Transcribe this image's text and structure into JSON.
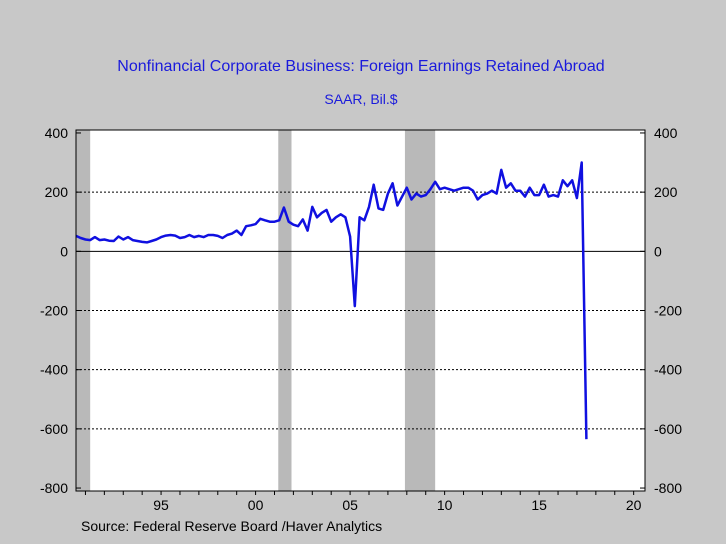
{
  "chart_data": {
    "type": "line",
    "title": "Nonfinancial Corporate Business: Foreign Earnings Retained Abroad",
    "subtitle": "SAAR, Bil.$",
    "source": "Source:  Federal Reserve Board /Haver Analytics",
    "y_ticks": [
      "400",
      "200",
      "0",
      "-200",
      "-400",
      "-600",
      "-800"
    ],
    "x_ticks": [
      "95",
      "00",
      "05",
      "10",
      "15",
      "20"
    ],
    "ylim": [
      -810,
      410
    ],
    "xlim": [
      1990.5,
      2020.6
    ],
    "colors": {
      "line": "#1010e0",
      "recession": "#b9b9b9",
      "plot_bg": "#ffffff",
      "frame_bg": "#c8c8c8",
      "title": "#1a1adc"
    },
    "recessions": [
      [
        1990.5,
        1991.25
      ],
      [
        2001.2,
        2001.9
      ],
      [
        2007.9,
        2009.5
      ]
    ],
    "series": [
      {
        "x": [
          1990.5,
          1990.75,
          1991.0,
          1991.25,
          1991.5,
          1991.75,
          1992.0,
          1992.25,
          1992.5,
          1992.75,
          1993.0,
          1993.25,
          1993.5,
          1993.75,
          1994.0,
          1994.25,
          1994.5,
          1994.75,
          1995.0,
          1995.25,
          1995.5,
          1995.75,
          1996.0,
          1996.25,
          1996.5,
          1996.75,
          1997.0,
          1997.25,
          1997.5,
          1997.75,
          1998.0,
          1998.25,
          1998.5,
          1998.75,
          1999.0,
          1999.25,
          1999.5,
          1999.75,
          2000.0,
          2000.25,
          2000.5,
          2000.75,
          2001.0,
          2001.25,
          2001.5,
          2001.75,
          2002.0,
          2002.25,
          2002.5,
          2002.75,
          2003.0,
          2003.25,
          2003.5,
          2003.75,
          2004.0,
          2004.25,
          2004.5,
          2004.75,
          2005.0,
          2005.25,
          2005.5,
          2005.75,
          2006.0,
          2006.25,
          2006.5,
          2006.75,
          2007.0,
          2007.25,
          2007.5,
          2007.75,
          2008.0,
          2008.25,
          2008.5,
          2008.75,
          2009.0,
          2009.25,
          2009.5,
          2009.75,
          2010.0,
          2010.25,
          2010.5,
          2010.75,
          2011.0,
          2011.25,
          2011.5,
          2011.75,
          2012.0,
          2012.25,
          2012.5,
          2012.75,
          2013.0,
          2013.25,
          2013.5,
          2013.75,
          2014.0,
          2014.25,
          2014.5,
          2014.75,
          2015.0,
          2015.25,
          2015.5,
          2015.75,
          2016.0,
          2016.25,
          2016.5,
          2016.75,
          2017.0,
          2017.25,
          2017.5
        ],
        "y": [
          52,
          45,
          40,
          38,
          48,
          38,
          40,
          36,
          35,
          50,
          40,
          48,
          38,
          35,
          32,
          30,
          35,
          40,
          48,
          53,
          55,
          53,
          45,
          48,
          55,
          48,
          52,
          48,
          55,
          55,
          52,
          45,
          55,
          60,
          70,
          55,
          85,
          88,
          92,
          110,
          105,
          100,
          100,
          105,
          148,
          100,
          90,
          85,
          108,
          70,
          150,
          115,
          130,
          140,
          100,
          115,
          125,
          115,
          50,
          -185,
          115,
          105,
          150,
          225,
          145,
          140,
          195,
          230,
          155,
          185,
          215,
          175,
          195,
          185,
          190,
          210,
          235,
          210,
          215,
          210,
          205,
          210,
          215,
          215,
          205,
          175,
          190,
          195,
          205,
          195,
          275,
          215,
          230,
          205,
          205,
          185,
          215,
          190,
          190,
          225,
          185,
          190,
          185,
          240,
          220,
          240,
          180,
          300,
          -635
        ]
      }
    ]
  }
}
